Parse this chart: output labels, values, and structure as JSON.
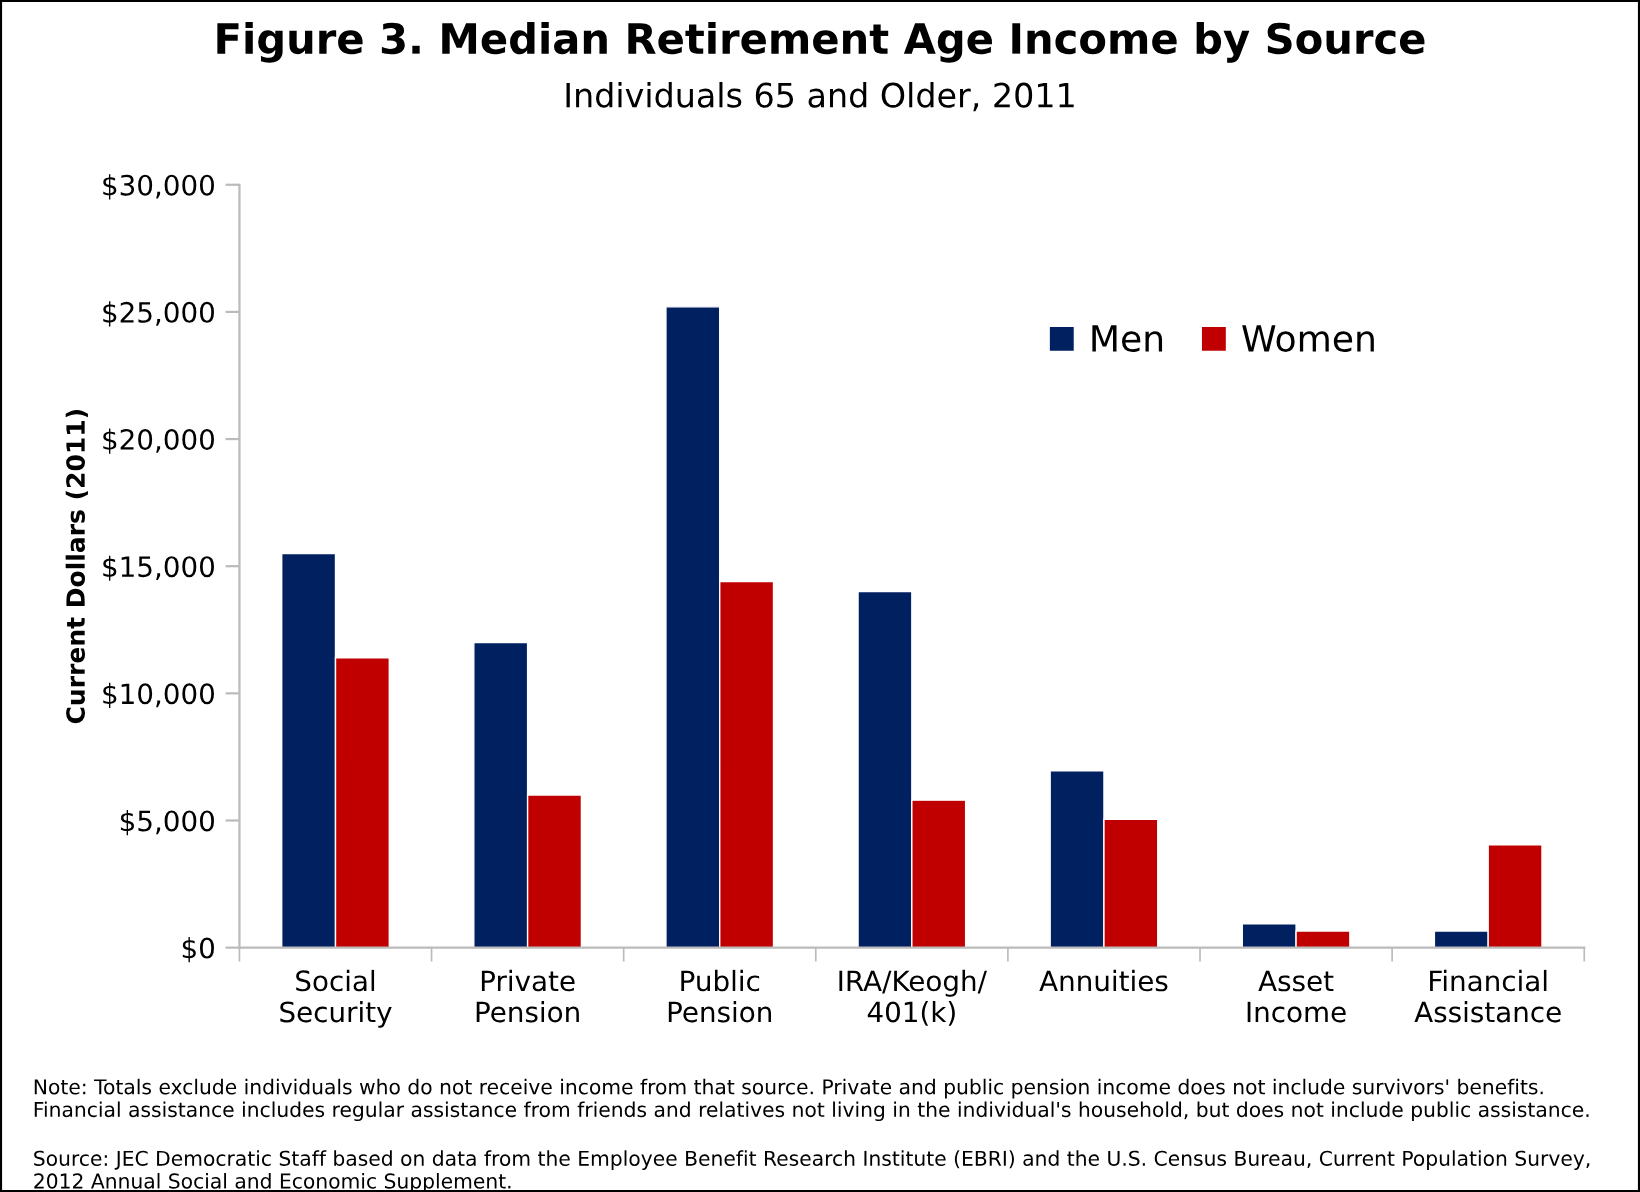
{
  "chart_data": {
    "type": "bar",
    "title": "Figure 3. Median Retirement Age Income by Source",
    "subtitle": "Individuals 65 and Older, 2011",
    "ylabel": "Current Dollars (2011)",
    "categories": [
      "Social\nSecurity",
      "Private\nPension",
      "Public\nPension",
      "IRA/Keogh/\n401(k)",
      "Annuities",
      "Asset\nIncome",
      "Financial\nAssistance"
    ],
    "series": [
      {
        "name": "Men",
        "color": "#002060",
        "values": [
          15500,
          12000,
          25200,
          14000,
          6950,
          940,
          650
        ]
      },
      {
        "name": "Women",
        "color": "#c00000",
        "values": [
          11400,
          6000,
          14400,
          5800,
          5050,
          650,
          4040
        ]
      }
    ],
    "ylim": [
      0,
      30000
    ],
    "yticks": [
      {
        "value": 0,
        "label": "$0"
      },
      {
        "value": 5000,
        "label": "$5,000"
      },
      {
        "value": 10000,
        "label": "$10,000"
      },
      {
        "value": 15000,
        "label": "$15,000"
      },
      {
        "value": 20000,
        "label": "$20,000"
      },
      {
        "value": 25000,
        "label": "$25,000"
      },
      {
        "value": 30000,
        "label": "$30,000"
      }
    ],
    "grid": false,
    "legend": "top right",
    "annotations": [
      "Note: Totals exclude individuals who do not receive income from that source. Private and public pension income does not include survivors' benefits. Financial assistance includes regular assistance from friends and relatives not living in the individual's household, but does not include public assistance.",
      "Source: JEC Democratic Staff based on data from the Employee Benefit Research Institute (EBRI) and the U.S. Census Bureau, Current Population Survey, 2012 Annual Social and Economic Supplement."
    ]
  }
}
